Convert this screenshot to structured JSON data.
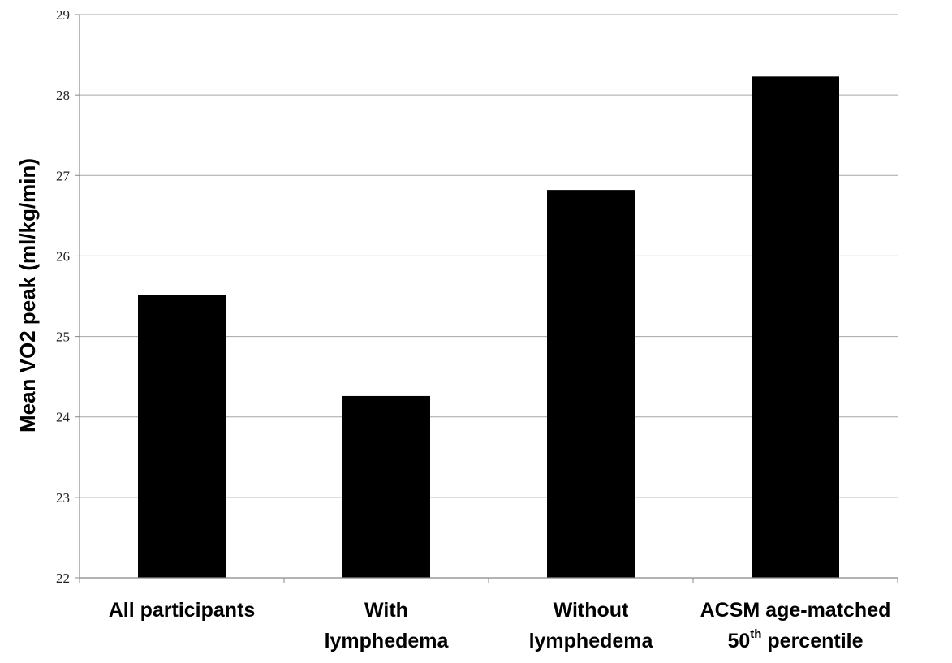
{
  "chart_data": {
    "type": "bar",
    "title": "",
    "xlabel": "",
    "ylabel": "Mean VO2 peak (ml/kg/min)",
    "ylim": [
      22,
      29
    ],
    "yticks": [
      "22",
      "23",
      "24",
      "25",
      "26",
      "27",
      "28",
      "29"
    ],
    "grid": true,
    "categories": [
      {
        "lines": [
          "All participants"
        ]
      },
      {
        "lines": [
          "With",
          "lymphedema"
        ]
      },
      {
        "lines": [
          "Without",
          "lymphedema"
        ]
      },
      {
        "lines": [
          "ACSM age-matched",
          "50th  percentile"
        ],
        "line2_parts": {
          "num": "50",
          "sup": "th",
          "rest": "  percentile"
        }
      }
    ],
    "values": [
      25.52,
      24.26,
      26.82,
      28.23
    ],
    "bar_color": "#000000",
    "grid_color": "#a6a6a6"
  }
}
